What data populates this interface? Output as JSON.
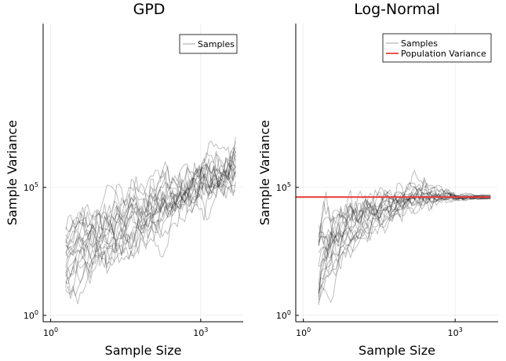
{
  "chart_data": [
    {
      "type": "line",
      "title": "GPD",
      "xlabel": "Sample Size",
      "ylabel": "Sample Variance",
      "xscale": "log10",
      "yscale": "log10",
      "xlim_exp": [
        -0.15,
        3.85
      ],
      "ylim_exp": [
        -0.25,
        11.4
      ],
      "xticks": [
        {
          "exp": 0,
          "label": "10",
          "sup": "0"
        },
        {
          "exp": 3,
          "label": "10",
          "sup": "3"
        }
      ],
      "yticks": [
        {
          "exp": 0,
          "label": "10",
          "sup": "0"
        },
        {
          "exp": 5,
          "label": "10",
          "sup": "5"
        }
      ],
      "grid": true,
      "legend": {
        "position": "top-right",
        "entries": [
          {
            "name": "Samples",
            "color": "#000000",
            "opacity": 0.25
          }
        ]
      },
      "n_series": 20,
      "series_color": "#000000",
      "series_x_exp_range": [
        0.301,
        3.699
      ],
      "series_start_exp_range": [
        0.8,
        3.6
      ],
      "series_end_exp_range": [
        4.8,
        6.1
      ]
    },
    {
      "type": "line",
      "title": "Log-Normal",
      "xlabel": "Sample Size",
      "ylabel": "Sample Variance",
      "xscale": "log10",
      "yscale": "log10",
      "xlim_exp": [
        -0.15,
        3.85
      ],
      "ylim_exp": [
        -0.25,
        11.4
      ],
      "xticks": [
        {
          "exp": 0,
          "label": "10",
          "sup": "0"
        },
        {
          "exp": 3,
          "label": "10",
          "sup": "3"
        }
      ],
      "yticks": [
        {
          "exp": 0,
          "label": "10",
          "sup": "0"
        },
        {
          "exp": 5,
          "label": "10",
          "sup": "5"
        }
      ],
      "grid": true,
      "legend": {
        "position": "top-right",
        "entries": [
          {
            "name": "Samples",
            "color": "#000000",
            "opacity": 0.25
          },
          {
            "name": "Population Variance",
            "color": "#e8403c"
          }
        ]
      },
      "n_series": 20,
      "series_color": "#000000",
      "series_x_exp_range": [
        0.301,
        3.699
      ],
      "series_start_exp_range": [
        0.0,
        3.2
      ],
      "population_variance_exp": 4.62
    }
  ]
}
